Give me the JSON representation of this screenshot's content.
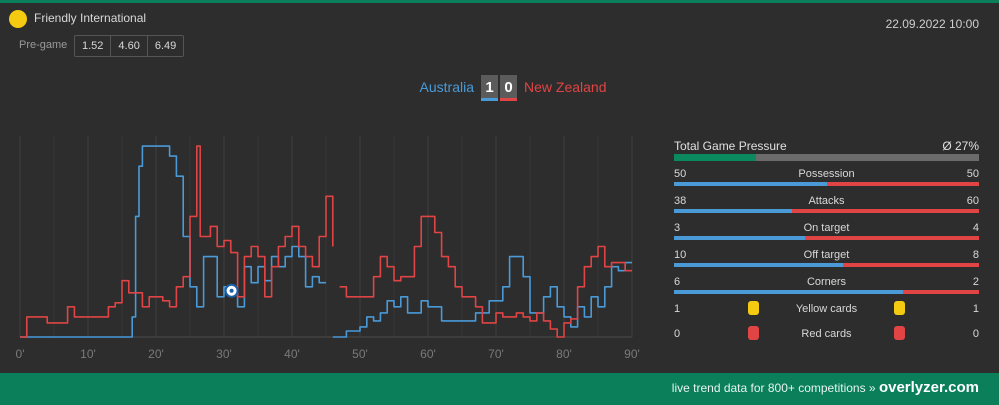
{
  "header": {
    "league_name": "Friendly International",
    "datetime": "22.09.2022 10:00",
    "pregame_label": "Pre-game",
    "odds": [
      "1.52",
      "4.60",
      "6.49"
    ]
  },
  "match": {
    "home_team": "Australia",
    "away_team": "New Zealand",
    "home_score": "1",
    "away_score": "0"
  },
  "colors": {
    "home": "#4a9ad8",
    "away": "#e04444",
    "accent": "#0a7f5a",
    "yellow_card": "#f5cb11",
    "red_card": "#e04444"
  },
  "stats": {
    "pressure_title": "Total Game Pressure",
    "pressure_value": "Ø 27%",
    "pressure_fraction": 0.27,
    "rows": [
      {
        "label": "Possession",
        "home": "50",
        "away": "50"
      },
      {
        "label": "Attacks",
        "home": "38",
        "away": "60"
      },
      {
        "label": "On target",
        "home": "3",
        "away": "4"
      },
      {
        "label": "Off target",
        "home": "10",
        "away": "8"
      },
      {
        "label": "Corners",
        "home": "6",
        "away": "2"
      }
    ],
    "cards": [
      {
        "label": "Yellow cards",
        "home": "1",
        "away": "1",
        "icon": "yellow-card-icon"
      },
      {
        "label": "Red cards",
        "home": "0",
        "away": "0",
        "icon": "red-card-icon"
      }
    ]
  },
  "footer": {
    "text": "live trend data for 800+ competitions »",
    "brand": "overlyzer.com"
  },
  "chart_data": {
    "type": "line",
    "x_ticks": [
      "0'",
      "10'",
      "20'",
      "30'",
      "40'",
      "50'",
      "60'",
      "70'",
      "80'",
      "90'"
    ],
    "xlim": [
      0,
      90
    ],
    "ylim": [
      0,
      100
    ],
    "grid": "vertical",
    "annotations": [
      {
        "type": "goal-icon",
        "minute": 32,
        "team": "home"
      }
    ],
    "series": [
      {
        "team": "home",
        "color": "#4a9ad8",
        "segments": [
          [
            [
              0,
              0
            ],
            [
              16.5,
              0
            ],
            [
              16.5,
              10
            ],
            [
              17,
              10
            ],
            [
              17,
              60
            ],
            [
              17.5,
              60
            ],
            [
              17.5,
              85
            ],
            [
              18,
              85
            ],
            [
              18,
              95
            ],
            [
              22,
              95
            ],
            [
              22,
              90
            ],
            [
              23,
              90
            ],
            [
              23,
              80
            ],
            [
              24,
              80
            ],
            [
              24,
              50
            ],
            [
              25,
              50
            ],
            [
              25,
              25
            ],
            [
              26,
              25
            ],
            [
              26,
              15
            ],
            [
              27,
              15
            ],
            [
              27,
              40
            ],
            [
              29,
              40
            ],
            [
              29,
              20
            ],
            [
              30,
              20
            ],
            [
              30,
              25
            ],
            [
              31,
              25
            ],
            [
              31,
              23
            ],
            [
              32,
              23
            ],
            [
              32,
              15
            ],
            [
              33,
              15
            ],
            [
              33,
              35
            ],
            [
              34,
              35
            ],
            [
              34,
              27
            ],
            [
              35,
              27
            ],
            [
              35,
              35
            ],
            [
              36,
              35
            ],
            [
              36,
              28
            ],
            [
              37,
              28
            ],
            [
              37,
              40
            ],
            [
              38,
              40
            ],
            [
              38,
              35
            ],
            [
              39,
              35
            ],
            [
              39,
              40
            ],
            [
              40,
              40
            ],
            [
              40,
              45
            ],
            [
              41,
              45
            ],
            [
              41,
              40
            ],
            [
              42,
              40
            ],
            [
              42,
              25
            ],
            [
              43,
              25
            ],
            [
              43,
              30
            ],
            [
              44,
              30
            ],
            [
              44,
              27
            ],
            [
              45,
              27
            ]
          ],
          [
            [
              46,
              0
            ],
            [
              48,
              0
            ],
            [
              48,
              3
            ],
            [
              50,
              3
            ],
            [
              50,
              5
            ],
            [
              51,
              5
            ],
            [
              51,
              10
            ],
            [
              52,
              10
            ],
            [
              52,
              8
            ],
            [
              53,
              8
            ],
            [
              53,
              12
            ],
            [
              54,
              12
            ],
            [
              54,
              18
            ],
            [
              55,
              18
            ],
            [
              55,
              15
            ],
            [
              56,
              15
            ],
            [
              56,
              20
            ],
            [
              57,
              20
            ],
            [
              57,
              12
            ],
            [
              59,
              12
            ],
            [
              59,
              18
            ],
            [
              60,
              18
            ],
            [
              60,
              15
            ],
            [
              62,
              15
            ],
            [
              62,
              8
            ],
            [
              67,
              8
            ],
            [
              67,
              12
            ],
            [
              69,
              12
            ],
            [
              69,
              18
            ],
            [
              71,
              18
            ],
            [
              71,
              25
            ],
            [
              72,
              25
            ],
            [
              72,
              40
            ],
            [
              74,
              40
            ],
            [
              74,
              30
            ],
            [
              75,
              30
            ],
            [
              75,
              12
            ],
            [
              77,
              12
            ],
            [
              77,
              20
            ],
            [
              78,
              20
            ],
            [
              78,
              25
            ],
            [
              79,
              25
            ],
            [
              79,
              15
            ],
            [
              80,
              15
            ],
            [
              80,
              10
            ],
            [
              81,
              10
            ],
            [
              81,
              5
            ],
            [
              82,
              5
            ],
            [
              82,
              15
            ],
            [
              83,
              15
            ],
            [
              83,
              10
            ],
            [
              84,
              10
            ],
            [
              84,
              20
            ],
            [
              85,
              20
            ],
            [
              85,
              15
            ],
            [
              86,
              15
            ],
            [
              86,
              25
            ],
            [
              87,
              25
            ],
            [
              87,
              35
            ],
            [
              88,
              35
            ],
            [
              88,
              33
            ],
            [
              89,
              33
            ],
            [
              89,
              37
            ],
            [
              90,
              37
            ]
          ]
        ]
      },
      {
        "team": "away",
        "color": "#e04444",
        "segments": [
          [
            [
              0,
              0
            ],
            [
              1,
              0
            ],
            [
              1,
              10
            ],
            [
              4,
              10
            ],
            [
              4,
              7
            ],
            [
              7,
              7
            ],
            [
              7,
              15
            ],
            [
              8,
              15
            ],
            [
              8,
              10
            ],
            [
              13,
              10
            ],
            [
              13,
              15
            ],
            [
              14,
              15
            ],
            [
              14,
              17
            ],
            [
              15,
              17
            ],
            [
              15,
              28
            ],
            [
              16,
              28
            ],
            [
              16,
              22
            ],
            [
              18,
              22
            ],
            [
              18,
              15
            ],
            [
              19,
              15
            ],
            [
              19,
              20
            ],
            [
              21,
              20
            ],
            [
              21,
              18
            ],
            [
              22,
              18
            ],
            [
              22,
              15
            ],
            [
              23,
              15
            ],
            [
              23,
              25
            ],
            [
              24,
              25
            ],
            [
              24,
              30
            ],
            [
              25,
              30
            ],
            [
              25,
              60
            ],
            [
              26,
              60
            ],
            [
              26,
              95
            ],
            [
              26.5,
              95
            ],
            [
              26.5,
              50
            ],
            [
              28,
              50
            ],
            [
              28,
              55
            ],
            [
              29,
              55
            ],
            [
              29,
              45
            ],
            [
              30,
              45
            ],
            [
              30,
              48
            ],
            [
              31,
              48
            ],
            [
              31,
              42
            ],
            [
              32,
              42
            ],
            [
              32,
              20
            ],
            [
              33,
              20
            ],
            [
              33,
              40
            ],
            [
              34,
              40
            ],
            [
              34,
              45
            ],
            [
              35,
              45
            ],
            [
              35,
              40
            ],
            [
              36,
              40
            ],
            [
              36,
              20
            ],
            [
              37,
              20
            ],
            [
              37,
              35
            ],
            [
              38,
              35
            ],
            [
              38,
              45
            ],
            [
              39,
              45
            ],
            [
              39,
              50
            ],
            [
              40,
              50
            ],
            [
              40,
              55
            ],
            [
              41,
              55
            ],
            [
              41,
              45
            ],
            [
              42,
              45
            ],
            [
              42,
              40
            ],
            [
              43,
              40
            ],
            [
              43,
              35
            ],
            [
              44,
              35
            ],
            [
              44,
              50
            ],
            [
              45,
              50
            ],
            [
              45,
              70
            ],
            [
              46,
              70
            ],
            [
              46,
              45
            ]
          ],
          [
            [
              47,
              25
            ],
            [
              48,
              25
            ],
            [
              48,
              20
            ],
            [
              52,
              20
            ],
            [
              52,
              30
            ],
            [
              53,
              30
            ],
            [
              53,
              40
            ],
            [
              54,
              40
            ],
            [
              54,
              35
            ],
            [
              55,
              35
            ],
            [
              55,
              28
            ],
            [
              56,
              28
            ],
            [
              56,
              30
            ],
            [
              58,
              30
            ],
            [
              58,
              45
            ],
            [
              59,
              45
            ],
            [
              59,
              60
            ],
            [
              61,
              60
            ],
            [
              61,
              52
            ],
            [
              62,
              52
            ],
            [
              62,
              40
            ],
            [
              63,
              40
            ],
            [
              63,
              35
            ],
            [
              64,
              35
            ],
            [
              64,
              25
            ],
            [
              65,
              25
            ],
            [
              65,
              20
            ],
            [
              67,
              20
            ],
            [
              67,
              15
            ],
            [
              68,
              15
            ],
            [
              68,
              7
            ],
            [
              70,
              7
            ],
            [
              70,
              12
            ],
            [
              71,
              12
            ],
            [
              71,
              10
            ],
            [
              73,
              10
            ],
            [
              73,
              12
            ],
            [
              74,
              12
            ],
            [
              74,
              10
            ],
            [
              75,
              10
            ],
            [
              75,
              8
            ],
            [
              76,
              8
            ],
            [
              76,
              12
            ],
            [
              77,
              12
            ],
            [
              77,
              8
            ],
            [
              78,
              8
            ],
            [
              78,
              4
            ],
            [
              79,
              4
            ],
            [
              79,
              0
            ],
            [
              80,
              0
            ],
            [
              80,
              7
            ],
            [
              81,
              7
            ],
            [
              81,
              9
            ],
            [
              82,
              9
            ],
            [
              82,
              25
            ],
            [
              83,
              25
            ],
            [
              83,
              35
            ],
            [
              84,
              35
            ],
            [
              84,
              40
            ],
            [
              85,
              40
            ],
            [
              85,
              45
            ],
            [
              86,
              45
            ],
            [
              86,
              35
            ],
            [
              87,
              35
            ],
            [
              87,
              37
            ],
            [
              89,
              37
            ],
            [
              89,
              33
            ],
            [
              90,
              33
            ]
          ]
        ]
      }
    ]
  }
}
